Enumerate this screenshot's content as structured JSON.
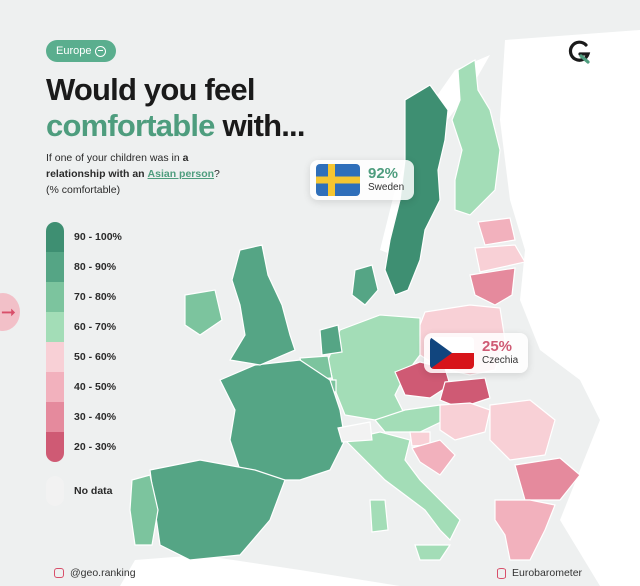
{
  "badge": {
    "label": "Europe",
    "icon": "globe-icon"
  },
  "title": {
    "line1": "Would you feel",
    "accent": "comfortable",
    "rest": " with..."
  },
  "subtitle": {
    "pre": "If one of your children was in ",
    "bold": "a relationship with an",
    "highlight": "Asian person",
    "post": "?",
    "note": "(% comfortable)"
  },
  "legend": [
    {
      "label": "90 - 100%",
      "color": "#3e8f72"
    },
    {
      "label": "80 - 90%",
      "color": "#55a585"
    },
    {
      "label": "70 - 80%",
      "color": "#7cc49e"
    },
    {
      "label": "60 - 70%",
      "color": "#a3ddb7"
    },
    {
      "label": "50 - 60%",
      "color": "#f8d0d6"
    },
    {
      "label": "40 - 50%",
      "color": "#f2b1bd"
    },
    {
      "label": "30 - 40%",
      "color": "#e58a9d"
    },
    {
      "label": "20 - 30%",
      "color": "#cf5a74"
    },
    {
      "label": "No data",
      "color": "#f2f2f2"
    }
  ],
  "callouts": {
    "sweden": {
      "value": "92%",
      "name": "Sweden",
      "color": "#4e9d7e"
    },
    "czechia": {
      "value": "25%",
      "name": "Czechia",
      "color": "#cf5a74"
    }
  },
  "footer": {
    "handle": "@geo.ranking",
    "source": "Eurobarometer"
  },
  "colors": {
    "background": "#eef0f0",
    "nondata_land": "#ffffff",
    "brand": "#4e9d7e",
    "accent_red": "#d84f6a"
  }
}
